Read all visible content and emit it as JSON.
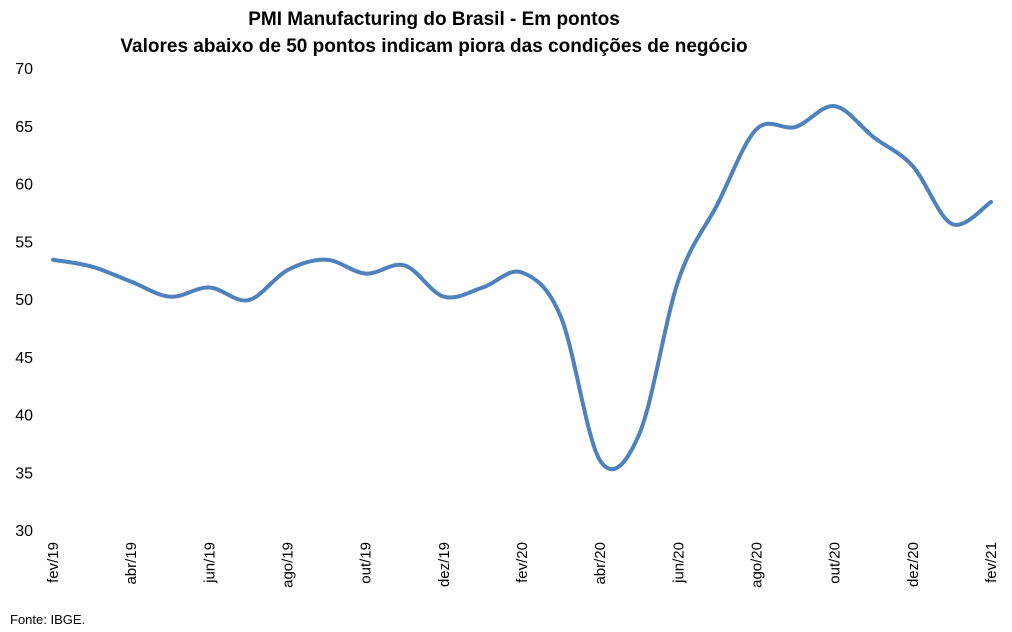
{
  "chart_data": {
    "type": "line",
    "title": "PMI Manufacturing do Brasil - Em pontos",
    "subtitle": "Valores abaixo de 50 pontos indicam piora das condições de negócio",
    "ylim": [
      30,
      70
    ],
    "yticks": [
      30,
      35,
      40,
      45,
      50,
      55,
      60,
      65,
      70
    ],
    "xtick_labels": [
      "fev/19",
      "abr/19",
      "jun/19",
      "ago/19",
      "out/19",
      "dez/19",
      "fev/20",
      "abr/20",
      "jun/20",
      "ago/20",
      "out/20",
      "dez/20",
      "fev/21"
    ],
    "x": [
      "fev/19",
      "mar/19",
      "abr/19",
      "mai/19",
      "jun/19",
      "jul/19",
      "ago/19",
      "set/19",
      "out/19",
      "nov/19",
      "dez/19",
      "jan/20",
      "fev/20",
      "mar/20",
      "abr/20",
      "mai/20",
      "jun/20",
      "jul/20",
      "ago/20",
      "set/20",
      "out/20",
      "nov/20",
      "dez/20",
      "jan/21",
      "fev/21"
    ],
    "series": [
      {
        "values": [
          53.4,
          52.8,
          51.5,
          50.2,
          51.0,
          49.9,
          52.5,
          53.4,
          52.2,
          52.9,
          50.2,
          51.0,
          52.3,
          48.4,
          36.0,
          38.3,
          51.6,
          58.2,
          64.7,
          64.9,
          66.7,
          64.0,
          61.5,
          56.5,
          58.4
        ],
        "color": "#4f81bd"
      }
    ],
    "grid": false,
    "legend": "none"
  },
  "source": "Fonte: IBGE."
}
